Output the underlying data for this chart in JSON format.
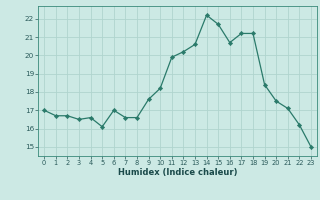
{
  "x": [
    0,
    1,
    2,
    3,
    4,
    5,
    6,
    7,
    8,
    9,
    10,
    11,
    12,
    13,
    14,
    15,
    16,
    17,
    18,
    19,
    20,
    21,
    22,
    23
  ],
  "y": [
    17.0,
    16.7,
    16.7,
    16.5,
    16.6,
    16.1,
    17.0,
    16.6,
    16.6,
    17.6,
    18.2,
    19.9,
    20.2,
    20.6,
    22.2,
    21.7,
    20.7,
    21.2,
    21.2,
    18.4,
    17.5,
    17.1,
    16.2,
    15.0
  ],
  "xlabel": "Humidex (Indice chaleur)",
  "bg_color": "#cce9e4",
  "grid_color": "#b0d4ce",
  "line_color": "#2a7a6a",
  "marker_color": "#2a7a6a",
  "ylim": [
    14.5,
    22.7
  ],
  "xlim": [
    -0.5,
    23.5
  ],
  "yticks": [
    15,
    16,
    17,
    18,
    19,
    20,
    21,
    22
  ],
  "xticks": [
    0,
    1,
    2,
    3,
    4,
    5,
    6,
    7,
    8,
    9,
    10,
    11,
    12,
    13,
    14,
    15,
    16,
    17,
    18,
    19,
    20,
    21,
    22,
    23
  ]
}
